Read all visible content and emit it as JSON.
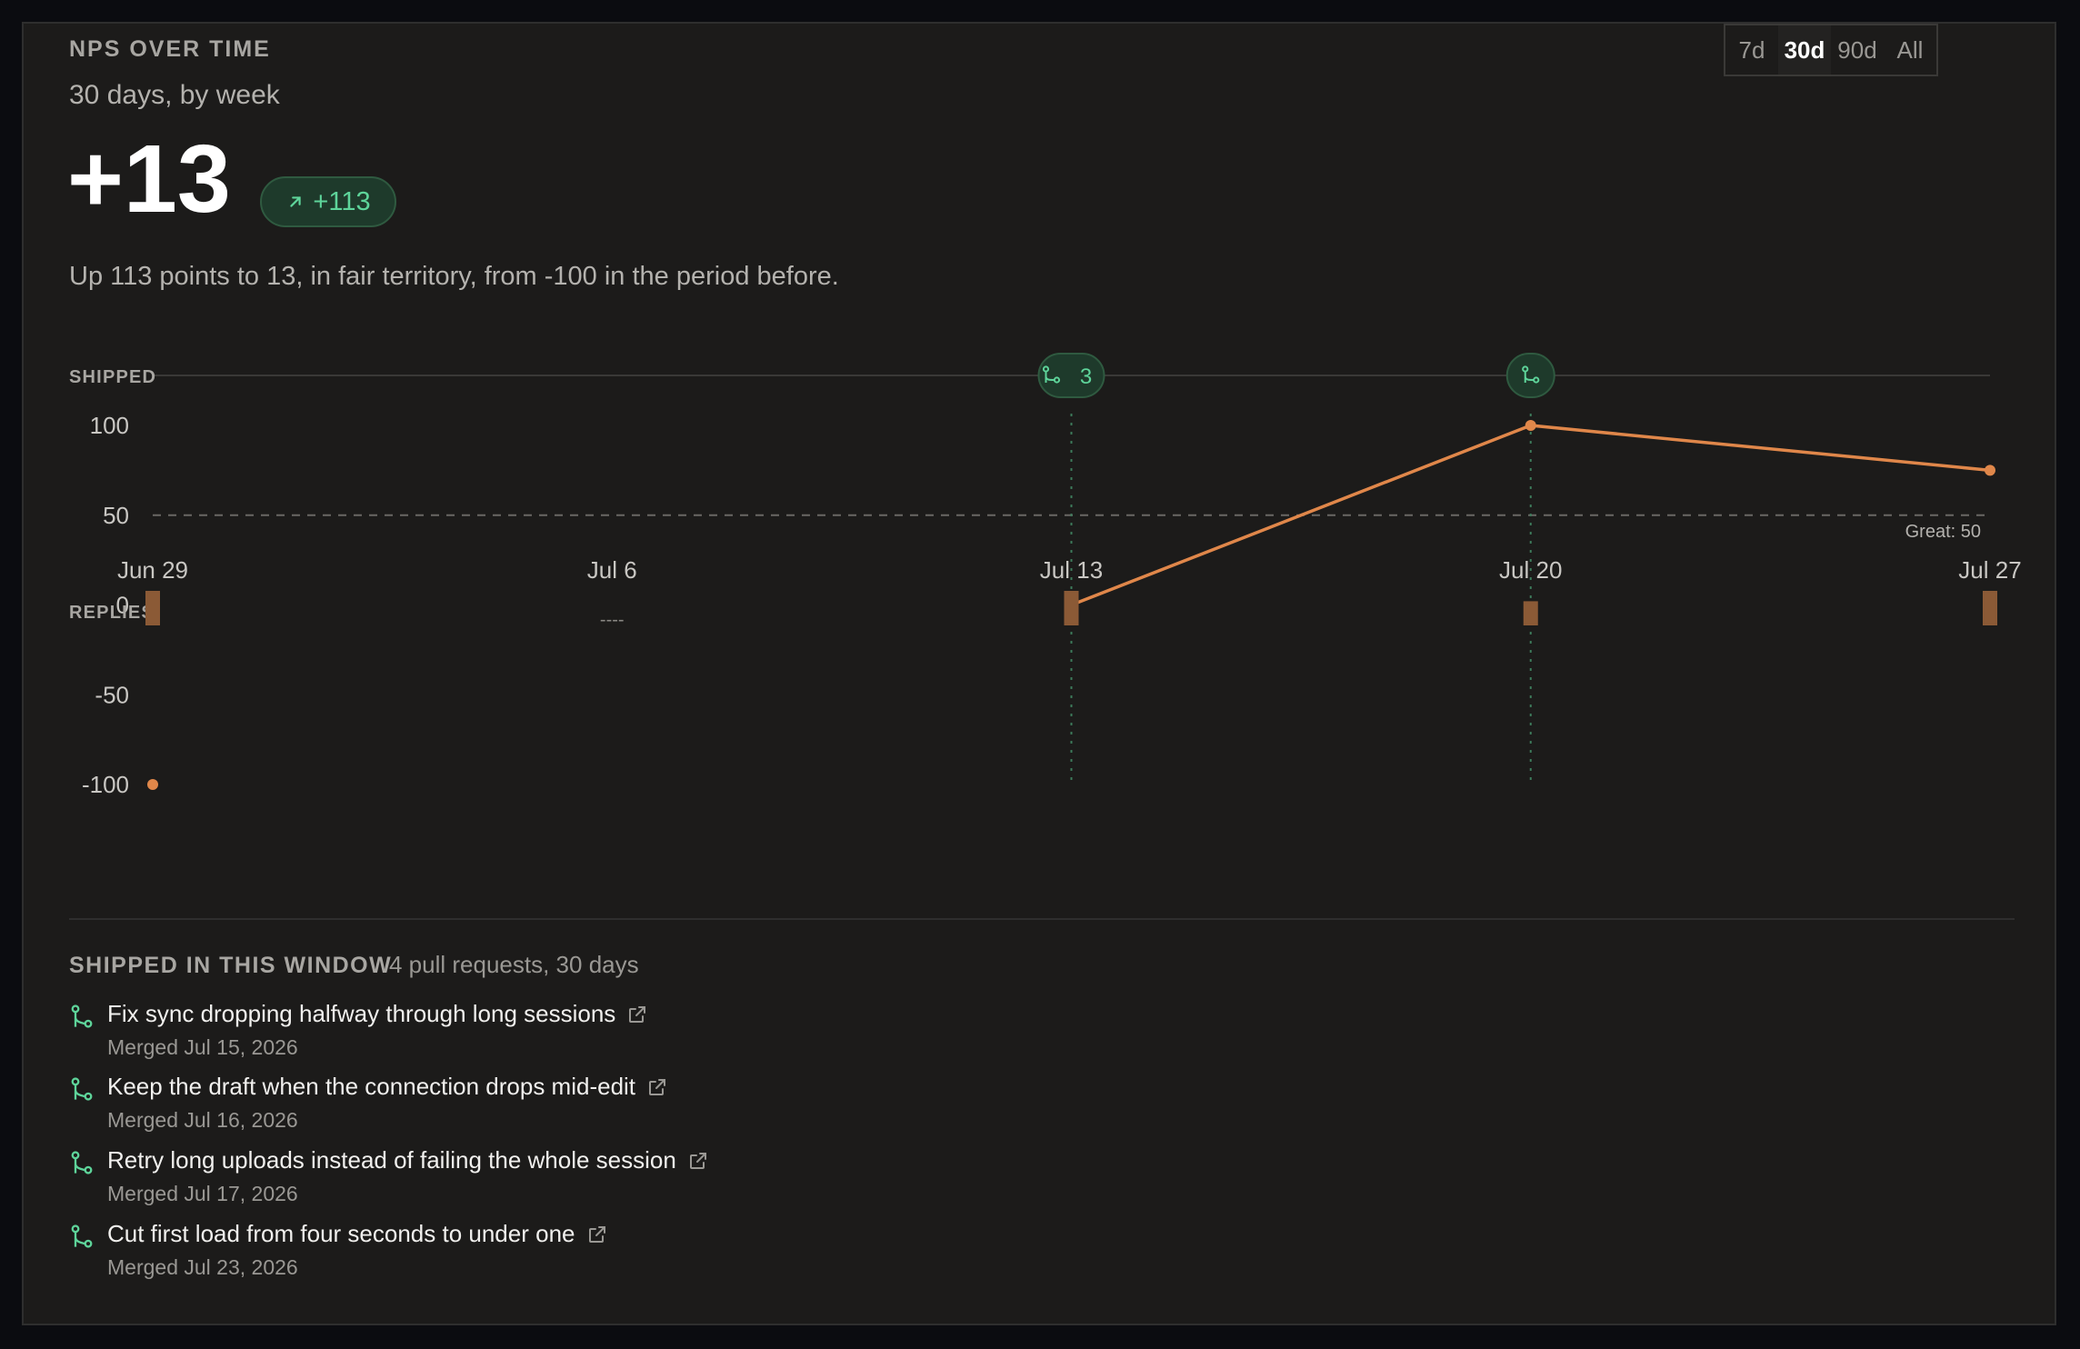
{
  "header": {
    "kicker": "NPS OVER TIME",
    "subtitle": "30 days, by week"
  },
  "range_tabs": [
    {
      "label": "7d",
      "active": false
    },
    {
      "label": "30d",
      "active": true
    },
    {
      "label": "90d",
      "active": false
    },
    {
      "label": "All",
      "active": false
    }
  ],
  "score": {
    "value": "+13",
    "delta": "+113",
    "delta_icon": "arrow-up-right-icon"
  },
  "summary": "Up 113 points to 13, in fair territory, from -100 in the period before.",
  "colors": {
    "line": "#e0874a",
    "badge_green": "#5ed49a",
    "replies_bar": "#8b5a36"
  },
  "chart_data": {
    "type": "line",
    "x": [
      "Jun 29",
      "Jul 6",
      "Jul 13",
      "Jul 20",
      "Jul 27"
    ],
    "series": [
      {
        "values": [
          -100,
          null,
          0,
          100,
          75
        ]
      }
    ],
    "yticks": [
      100,
      50,
      0,
      -50,
      -100
    ],
    "ylim": [
      -100,
      100
    ],
    "reference_line": {
      "value": 50,
      "label": "Great: 50"
    },
    "shipped_label": "SHIPPED",
    "shipped_markers": [
      {
        "x": "Jul 13",
        "count": "3"
      },
      {
        "x": "Jul 20",
        "count": ""
      }
    ],
    "replies_label": "REPLIES",
    "replies": [
      {
        "x": "Jun 29",
        "value": 1.0
      },
      {
        "x": "Jul 6",
        "value": null,
        "text": "----"
      },
      {
        "x": "Jul 13",
        "value": 1.0
      },
      {
        "x": "Jul 20",
        "value": 0.7
      },
      {
        "x": "Jul 27",
        "value": 1.0
      }
    ]
  },
  "shipped": {
    "heading": "SHIPPED IN THIS WINDOW",
    "meta": "4 pull requests, 30 days",
    "items": [
      {
        "title": "Fix sync dropping halfway through long sessions",
        "merged": "Merged Jul 15, 2026"
      },
      {
        "title": "Keep the draft when the connection drops mid-edit",
        "merged": "Merged Jul 16, 2026"
      },
      {
        "title": "Retry long uploads instead of failing the whole session",
        "merged": "Merged Jul 17, 2026"
      },
      {
        "title": "Cut first load from four seconds to under one",
        "merged": "Merged Jul 23, 2026"
      }
    ]
  }
}
